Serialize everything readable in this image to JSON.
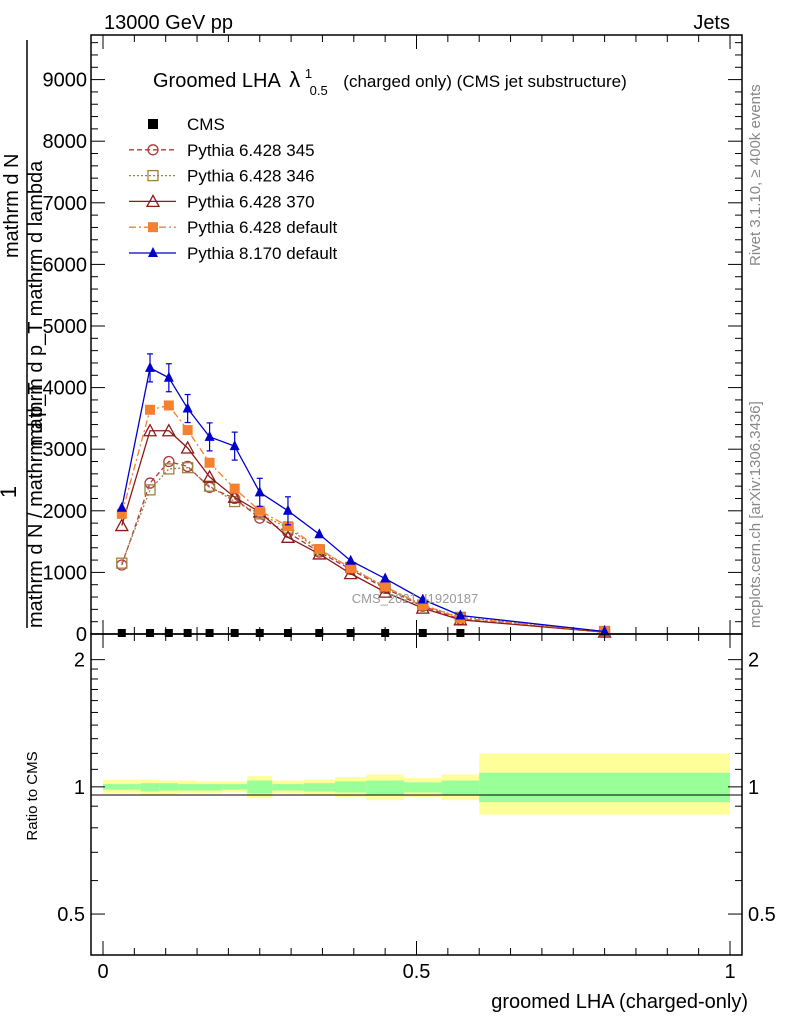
{
  "header": {
    "left": "13000 GeV pp",
    "right": "Jets",
    "title_main": "Groomed LHA",
    "title_lambda": "λ",
    "title_sub": "0.5",
    "title_sup": "1",
    "title_rest": "(charged only) (CMS jet substructure)"
  },
  "side": {
    "rivet": "Rivet 3.1.10, ≥ 400k events",
    "mcplots": "mcplots.cern.ch [arXiv:1306.3436]"
  },
  "watermark": "CMS_2021_I1920187",
  "main_axis": {
    "ylabel_top": "1",
    "ylabel_denominator": "mathrm d N / mathrm d p_T",
    "ylabel_numerator": "mathrm d N",
    "ylabel_numerator_rest": "mathrm d p_T mathrm d lambda",
    "ytick_labels": [
      "0",
      "1000",
      "2000",
      "3000",
      "4000",
      "5000",
      "6000",
      "7000",
      "8000",
      "9000"
    ],
    "ytick_labels_visible": [
      "0",
      "1000",
      "2000",
      "3000",
      "4000",
      "5000",
      "6000",
      "7000",
      "8000",
      "9000"
    ]
  },
  "ratio_axis": {
    "ylabel": "Ratio to CMS",
    "ytick_labels": [
      "0.5",
      "1",
      "2"
    ],
    "xlabel": "groomed LHA (charged-only)",
    "xtick_labels": [
      "0",
      "0.5",
      "1"
    ]
  },
  "legend": {
    "entries": [
      "CMS",
      "Pythia 6.428 345",
      "Pythia 6.428 346",
      "Pythia 6.428 370",
      "Pythia 6.428 default",
      "Pythia 8.170 default"
    ]
  },
  "colors": {
    "cms": "#000000",
    "p345": "#b03a3a",
    "p346": "#a08040",
    "p370": "#8b1a1a",
    "pdef": "#f58030",
    "p8": "#0000cc",
    "band_inner": "#99ff99",
    "band_outer": "#ffff99"
  },
  "chart_data": [
    {
      "type": "line",
      "ylim": [
        0,
        9800
      ],
      "xlim": [
        -0.02,
        1.0
      ],
      "series": [
        {
          "name": "CMS",
          "x": [
            0.03,
            0.075,
            0.105,
            0.135,
            0.17,
            0.21,
            0.25,
            0.295,
            0.345,
            0.395,
            0.45,
            0.51,
            0.57
          ],
          "y": [
            0,
            0,
            0,
            0,
            0,
            0,
            0,
            0,
            0,
            0,
            0,
            0,
            0
          ]
        },
        {
          "name": "Pythia 6.428 345",
          "x": [
            0.03,
            0.075,
            0.105,
            0.135,
            0.17,
            0.21,
            0.25,
            0.295,
            0.345,
            0.395,
            0.45,
            0.51,
            0.57,
            0.8
          ],
          "y": [
            1120,
            2450,
            2800,
            2720,
            2380,
            2200,
            1880,
            1650,
            1330,
            1050,
            740,
            450,
            240,
            30
          ]
        },
        {
          "name": "Pythia 6.428 346",
          "x": [
            0.03,
            0.075,
            0.105,
            0.135,
            0.17,
            0.21,
            0.25,
            0.295,
            0.345,
            0.395,
            0.45,
            0.51,
            0.57,
            0.8
          ],
          "y": [
            1150,
            2340,
            2680,
            2700,
            2400,
            2150,
            1950,
            1720,
            1360,
            1080,
            760,
            470,
            270,
            40
          ]
        },
        {
          "name": "Pythia 6.428 370",
          "x": [
            0.03,
            0.075,
            0.105,
            0.135,
            0.17,
            0.21,
            0.25,
            0.295,
            0.345,
            0.395,
            0.45,
            0.51,
            0.57,
            0.8
          ],
          "y": [
            1760,
            3300,
            3300,
            3020,
            2550,
            2220,
            1980,
            1570,
            1300,
            980,
            680,
            420,
            230,
            30
          ]
        },
        {
          "name": "Pythia 6.428 default",
          "x": [
            0.03,
            0.075,
            0.105,
            0.135,
            0.17,
            0.21,
            0.25,
            0.295,
            0.345,
            0.395,
            0.45,
            0.51,
            0.57,
            0.8
          ],
          "y": [
            1950,
            3640,
            3710,
            3310,
            2780,
            2360,
            2000,
            1750,
            1380,
            1070,
            770,
            470,
            260,
            40
          ]
        },
        {
          "name": "Pythia 8.170 default",
          "x": [
            0.03,
            0.075,
            0.105,
            0.135,
            0.17,
            0.21,
            0.25,
            0.295,
            0.345,
            0.395,
            0.45,
            0.51,
            0.57,
            0.8
          ],
          "y": [
            2050,
            4320,
            4160,
            3660,
            3200,
            3050,
            2300,
            2000,
            1620,
            1190,
            900,
            560,
            300,
            40
          ]
        }
      ]
    },
    {
      "type": "area",
      "ylim": [
        0.4,
        2.3
      ],
      "log_y": true,
      "bins": [
        {
          "x0": 0.0,
          "x1": 0.06,
          "inner": [
            0.985,
            1.015
          ],
          "outer": [
            0.965,
            1.04
          ]
        },
        {
          "x0": 0.06,
          "x1": 0.09,
          "inner": [
            0.975,
            1.02
          ],
          "outer": [
            0.955,
            1.04
          ]
        },
        {
          "x0": 0.09,
          "x1": 0.12,
          "inner": [
            0.98,
            1.02
          ],
          "outer": [
            0.96,
            1.035
          ]
        },
        {
          "x0": 0.12,
          "x1": 0.15,
          "inner": [
            0.98,
            1.015
          ],
          "outer": [
            0.965,
            1.035
          ]
        },
        {
          "x0": 0.15,
          "x1": 0.19,
          "inner": [
            0.98,
            1.015
          ],
          "outer": [
            0.965,
            1.03
          ]
        },
        {
          "x0": 0.19,
          "x1": 0.23,
          "inner": [
            0.985,
            1.015
          ],
          "outer": [
            0.97,
            1.03
          ]
        },
        {
          "x0": 0.23,
          "x1": 0.27,
          "inner": [
            0.965,
            1.035
          ],
          "outer": [
            0.94,
            1.06
          ]
        },
        {
          "x0": 0.27,
          "x1": 0.32,
          "inner": [
            0.98,
            1.015
          ],
          "outer": [
            0.965,
            1.035
          ]
        },
        {
          "x0": 0.32,
          "x1": 0.37,
          "inner": [
            0.975,
            1.02
          ],
          "outer": [
            0.955,
            1.04
          ]
        },
        {
          "x0": 0.37,
          "x1": 0.42,
          "inner": [
            0.97,
            1.03
          ],
          "outer": [
            0.945,
            1.055
          ]
        },
        {
          "x0": 0.42,
          "x1": 0.48,
          "inner": [
            0.96,
            1.035
          ],
          "outer": [
            0.93,
            1.07
          ]
        },
        {
          "x0": 0.48,
          "x1": 0.54,
          "inner": [
            0.97,
            1.025
          ],
          "outer": [
            0.945,
            1.05
          ]
        },
        {
          "x0": 0.54,
          "x1": 0.6,
          "inner": [
            0.96,
            1.035
          ],
          "outer": [
            0.93,
            1.07
          ]
        },
        {
          "x0": 0.6,
          "x1": 1.0,
          "inner": [
            0.92,
            1.08
          ],
          "outer": [
            0.86,
            1.2
          ]
        }
      ]
    }
  ]
}
